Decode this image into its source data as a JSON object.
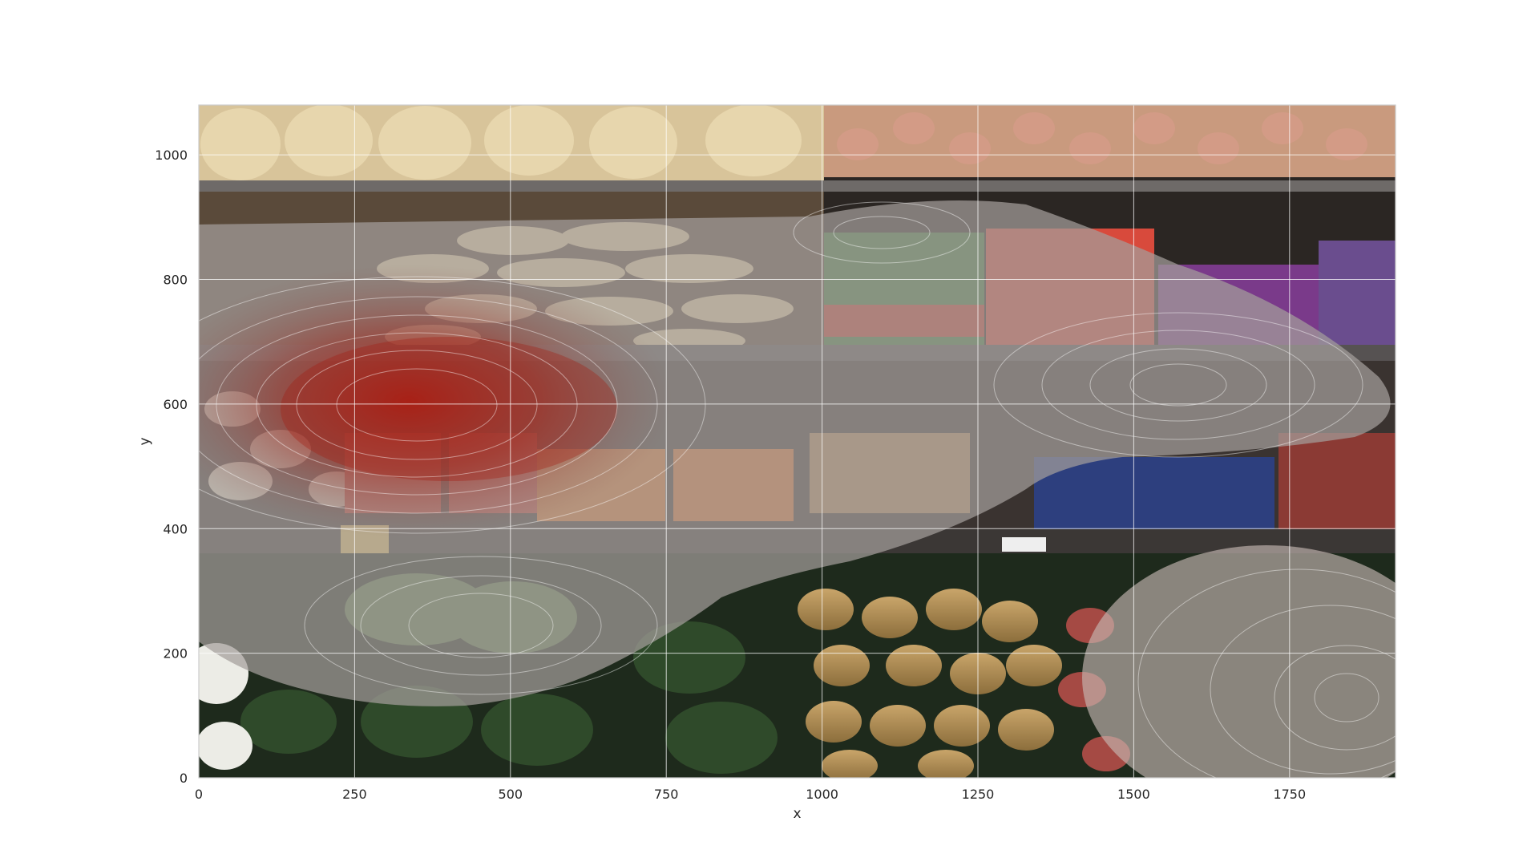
{
  "chart_data": {
    "type": "heatmap",
    "title": "",
    "xlabel": "x",
    "ylabel": "y",
    "xlim": [
      0,
      1920
    ],
    "ylim": [
      0,
      1080
    ],
    "x_ticks": [
      0,
      250,
      500,
      750,
      1000,
      1250,
      1500,
      1750
    ],
    "y_ticks": [
      0,
      200,
      400,
      600,
      800,
      1000
    ],
    "grid": true,
    "background": "photo of a grocery produce display: onions and squash on the top shelf, potatoes, bagged salad greens, packaged carrots, broccoli and potatoes in bins",
    "density_overlay": {
      "kind": "kernel density contours",
      "colormap": "gray-to-red",
      "peak_color": "#a01e14",
      "low_color": "#c8c8c8",
      "contour_line_color": "#ffffff",
      "peak_location": [
        450,
        620
      ]
    }
  },
  "colors": {
    "shelf_dark": "#2a2522",
    "overlay_gray": "#9c9794",
    "spine": "#cccccc",
    "grid": "#ffffff"
  }
}
